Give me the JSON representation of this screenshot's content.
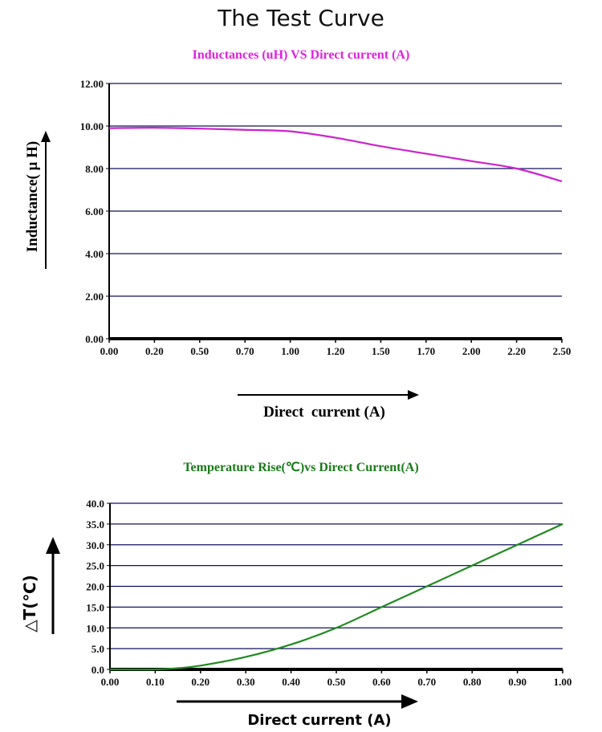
{
  "page_title": "The Test Curve",
  "chart_data": [
    {
      "type": "line",
      "title": "Inductances (uH) VS Direct current (A)",
      "title_color": "#e020e0",
      "line_color": "#cc22cc",
      "xlabel": "Direct  current (A)",
      "ylabel": "Inductance( μ H)",
      "x_ticks": [
        "0.00",
        "0.20",
        "0.50",
        "0.70",
        "1.00",
        "1.20",
        "1.50",
        "1.70",
        "2.00",
        "2.20",
        "2.50"
      ],
      "y_ticks": [
        "0.00",
        "2.00",
        "4.00",
        "6.00",
        "8.00",
        "10.00",
        "12.00"
      ],
      "ylim": [
        0,
        12
      ],
      "grid": true,
      "x": [
        0.0,
        0.2,
        0.5,
        0.7,
        1.0,
        1.2,
        1.5,
        1.7,
        2.0,
        2.2,
        2.5
      ],
      "y": [
        9.9,
        9.92,
        9.88,
        9.82,
        9.75,
        9.45,
        9.05,
        8.7,
        8.35,
        8.0,
        7.4
      ]
    },
    {
      "type": "line",
      "title": "Temperature Rise(℃)vs Direct Current(A)",
      "title_color": "#1a7a1a",
      "line_color": "#1f8a1f",
      "xlabel": "Direct current (A)",
      "ylabel": "△T(℃)",
      "x_ticks": [
        "0.00",
        "0.10",
        "0.20",
        "0.30",
        "0.40",
        "0.50",
        "0.60",
        "0.70",
        "0.80",
        "0.90",
        "1.00"
      ],
      "y_ticks": [
        "0.0",
        "5.0",
        "10.0",
        "15.0",
        "20.0",
        "25.0",
        "30.0",
        "35.0",
        "40.0"
      ],
      "ylim": [
        0,
        40
      ],
      "xlim": [
        0,
        1
      ],
      "grid": true,
      "x": [
        0,
        0.1,
        0.15,
        0.2,
        0.3,
        0.4,
        0.5,
        0.6,
        0.7,
        0.8,
        0.9,
        1.0
      ],
      "y": [
        0,
        0,
        0.3,
        0.9,
        3,
        6,
        10,
        15,
        20,
        25,
        30,
        35
      ]
    }
  ]
}
